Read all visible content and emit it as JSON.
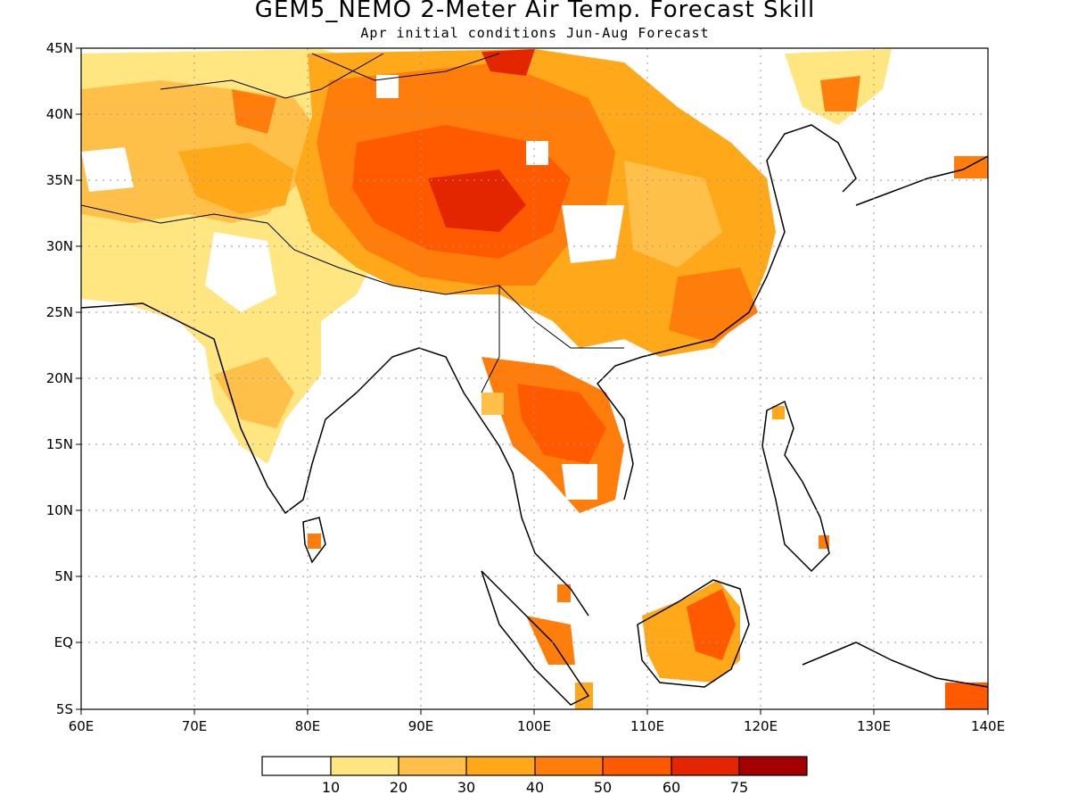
{
  "title": "GEM5_NEMO 2-Meter Air Temp. Forecast Skill",
  "subtitle": "Apr initial conditions   Jun-Aug Forecast",
  "colors": {
    "c0": "#ffffff",
    "c1": "#ffe680",
    "c2": "#ffc04a",
    "c3": "#ffa81a",
    "c4": "#ff7d0a",
    "c5": "#ff5a00",
    "c6": "#e32600",
    "c7": "#a50000",
    "coast": "#000000",
    "grid": "#9a9a9a"
  },
  "map": {
    "x_ticks": [
      "60E",
      "70E",
      "80E",
      "90E",
      "100E",
      "110E",
      "120E",
      "130E",
      "140E"
    ],
    "y_ticks": [
      "45N",
      "40N",
      "35N",
      "30N",
      "25N",
      "20N",
      "15N",
      "10N",
      "5N",
      "EQ",
      "5S"
    ],
    "lon_range": [
      60,
      140
    ],
    "lat_range": [
      -5,
      45
    ]
  },
  "colorbar": {
    "labels": [
      "10",
      "20",
      "30",
      "40",
      "50",
      "60",
      "75"
    ]
  }
}
